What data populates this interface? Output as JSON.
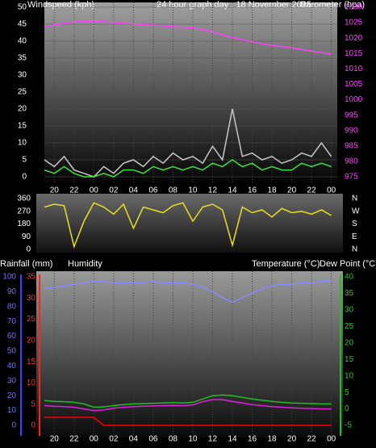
{
  "chart_data": [
    {
      "type": "line",
      "title": "24 hour graph day : 18 November 2025",
      "ylabel": "Windspeed (kph)",
      "y2label": "Barometer (hpa)",
      "x": [
        19,
        20,
        21,
        22,
        23,
        24,
        25,
        26,
        27,
        28,
        29,
        30,
        31,
        32,
        33,
        34,
        35,
        36,
        37,
        38,
        39,
        40,
        41,
        42,
        43,
        44,
        45,
        46,
        47,
        48
      ],
      "xlim": [
        19,
        48.6
      ],
      "xticks": [
        20,
        22,
        {
          "value": 24,
          "label": "00"
        },
        {
          "value": 26,
          "label": "02"
        },
        {
          "value": 28,
          "label": "04"
        },
        {
          "value": 30,
          "label": "06"
        },
        {
          "value": 32,
          "label": "08"
        },
        {
          "value": 34,
          "label": "10"
        },
        {
          "value": 36,
          "label": "12"
        },
        {
          "value": 38,
          "label": "14"
        },
        {
          "value": 40,
          "label": "16"
        },
        {
          "value": 42,
          "label": "18"
        },
        {
          "value": 44,
          "label": "20"
        },
        {
          "value": 46,
          "label": "22"
        },
        {
          "value": 48,
          "label": "00"
        }
      ],
      "ylim": [
        0,
        50
      ],
      "yticks": [
        0,
        5,
        10,
        15,
        20,
        25,
        30,
        35,
        40,
        45,
        50
      ],
      "y2lim": [
        975,
        1030
      ],
      "y2ticks": [
        975,
        980,
        985,
        990,
        995,
        1000,
        1005,
        1010,
        1015,
        1020,
        1025,
        1030
      ],
      "grid": true,
      "series": [
        {
          "color": "#c8c8c8",
          "values": [
            5,
            3,
            6,
            2,
            1,
            0,
            3,
            1,
            4,
            5,
            3,
            6,
            4,
            7,
            5,
            6,
            4,
            9,
            5,
            20,
            6,
            7,
            5,
            6,
            4,
            5,
            7,
            6,
            10,
            6
          ]
        },
        {
          "color": "#40e040",
          "values": [
            2,
            1,
            3,
            1,
            0,
            0,
            1,
            0,
            2,
            2,
            1,
            3,
            2,
            3,
            2,
            3,
            2,
            4,
            3,
            5,
            3,
            4,
            2,
            3,
            2,
            2,
            4,
            3,
            4,
            3
          ]
        },
        {
          "color": "#ff40ff",
          "axis": "y2",
          "values": [
            1023.8,
            1024.3,
            1024.8,
            1025.2,
            1025.4,
            1025.5,
            1025.3,
            1025,
            1024.8,
            1024.6,
            1024.3,
            1024.2,
            1024,
            1023.8,
            1023.5,
            1023.3,
            1022.8,
            1022,
            1021,
            1020.2,
            1019.5,
            1018.8,
            1018.2,
            1017.6,
            1017.2,
            1016.8,
            1016.3,
            1015.8,
            1015.3,
            1014.8
          ]
        }
      ]
    },
    {
      "type": "line",
      "x": [
        19,
        20,
        21,
        22,
        23,
        24,
        25,
        26,
        27,
        28,
        29,
        30,
        31,
        32,
        33,
        34,
        35,
        36,
        37,
        38,
        39,
        40,
        41,
        42,
        43,
        44,
        45,
        46,
        47,
        48
      ],
      "xlim": [
        19,
        48.6
      ],
      "ylim": [
        0,
        360
      ],
      "yticks": [
        0,
        90,
        180,
        270,
        360
      ],
      "y2lim": [
        0,
        360
      ],
      "y2ticks": [
        {
          "value": 0,
          "label": "N"
        },
        {
          "value": 90,
          "label": "E"
        },
        {
          "value": 180,
          "label": "S"
        },
        {
          "value": 270,
          "label": "W"
        },
        {
          "value": 360,
          "label": "N"
        }
      ],
      "series": [
        {
          "color": "#e8e020",
          "values": [
            300,
            320,
            310,
            20,
            200,
            330,
            300,
            250,
            320,
            150,
            300,
            280,
            260,
            310,
            330,
            200,
            300,
            320,
            280,
            30,
            300,
            260,
            280,
            230,
            290,
            260,
            270,
            250,
            280,
            240
          ]
        }
      ]
    },
    {
      "type": "line",
      "x": [
        19,
        20,
        21,
        22,
        23,
        24,
        25,
        26,
        27,
        28,
        29,
        30,
        31,
        32,
        33,
        34,
        35,
        36,
        37,
        38,
        39,
        40,
        41,
        42,
        43,
        44,
        45,
        46,
        47,
        48
      ],
      "xlim": [
        19,
        48.6
      ],
      "xticks": [
        20,
        22,
        {
          "value": 24,
          "label": "00"
        },
        {
          "value": 26,
          "label": "02"
        },
        {
          "value": 28,
          "label": "04"
        },
        {
          "value": 30,
          "label": "06"
        },
        {
          "value": 32,
          "label": "08"
        },
        {
          "value": 34,
          "label": "10"
        },
        {
          "value": 36,
          "label": "12"
        },
        {
          "value": 38,
          "label": "14"
        },
        {
          "value": 40,
          "label": "16"
        },
        {
          "value": 42,
          "label": "18"
        },
        {
          "value": 44,
          "label": "20"
        },
        {
          "value": 46,
          "label": "22"
        },
        {
          "value": 48,
          "label": "00"
        }
      ],
      "ylim": [
        0,
        100
      ],
      "yticks": [
        0,
        10,
        20,
        30,
        40,
        50,
        60,
        70,
        80,
        90,
        100
      ],
      "y3lim": [
        0,
        35
      ],
      "y3ticks": [
        0,
        5,
        10,
        15,
        20,
        25,
        30,
        35
      ],
      "y2lim": [
        -5,
        40
      ],
      "y2ticks": [
        -5,
        0,
        5,
        10,
        15,
        20,
        25,
        30,
        35,
        40
      ],
      "series": [
        {
          "name": "Humidity",
          "color": "#8888ff",
          "values": [
            92,
            93,
            94,
            95,
            96,
            97,
            97,
            96,
            96,
            96,
            96,
            97,
            96,
            96,
            96,
            95,
            93,
            90,
            86,
            83,
            86,
            89,
            92,
            94,
            95,
            95,
            96,
            96,
            97,
            97
          ]
        },
        {
          "name": "Rainfall (mm)",
          "color": "#ff0000",
          "axis": "y3",
          "values": [
            1.9,
            1.9,
            1.9,
            1.9,
            1.9,
            1.9,
            0,
            0,
            0,
            0,
            0,
            0,
            0,
            0,
            0,
            0,
            0,
            0,
            0,
            0,
            0,
            0,
            0,
            0,
            0,
            0,
            0,
            0,
            0,
            0
          ]
        },
        {
          "name": "Temperature (°C)",
          "color": "#20c020",
          "axis": "y2",
          "values": [
            2.5,
            2.3,
            2.2,
            2.0,
            1.5,
            0.5,
            0.6,
            1.0,
            1.3,
            1.5,
            1.6,
            1.7,
            1.8,
            1.9,
            1.8,
            2.0,
            3.0,
            4.0,
            4.2,
            4.0,
            3.5,
            3.0,
            2.6,
            2.3,
            2.0,
            1.8,
            1.7,
            1.6,
            1.5,
            1.5
          ]
        },
        {
          "name": "Dew Point (°C)",
          "color": "#e020e0",
          "axis": "y2",
          "values": [
            1.0,
            0.8,
            0.7,
            0.5,
            0.0,
            -0.5,
            -0.3,
            0.2,
            0.5,
            0.7,
            0.8,
            0.9,
            1.0,
            1.1,
            1.0,
            1.2,
            2.2,
            2.8,
            2.8,
            2.3,
            1.8,
            1.3,
            1.0,
            0.7,
            0.5,
            0.3,
            0.2,
            0.1,
            0.0,
            0.0
          ]
        }
      ]
    }
  ]
}
